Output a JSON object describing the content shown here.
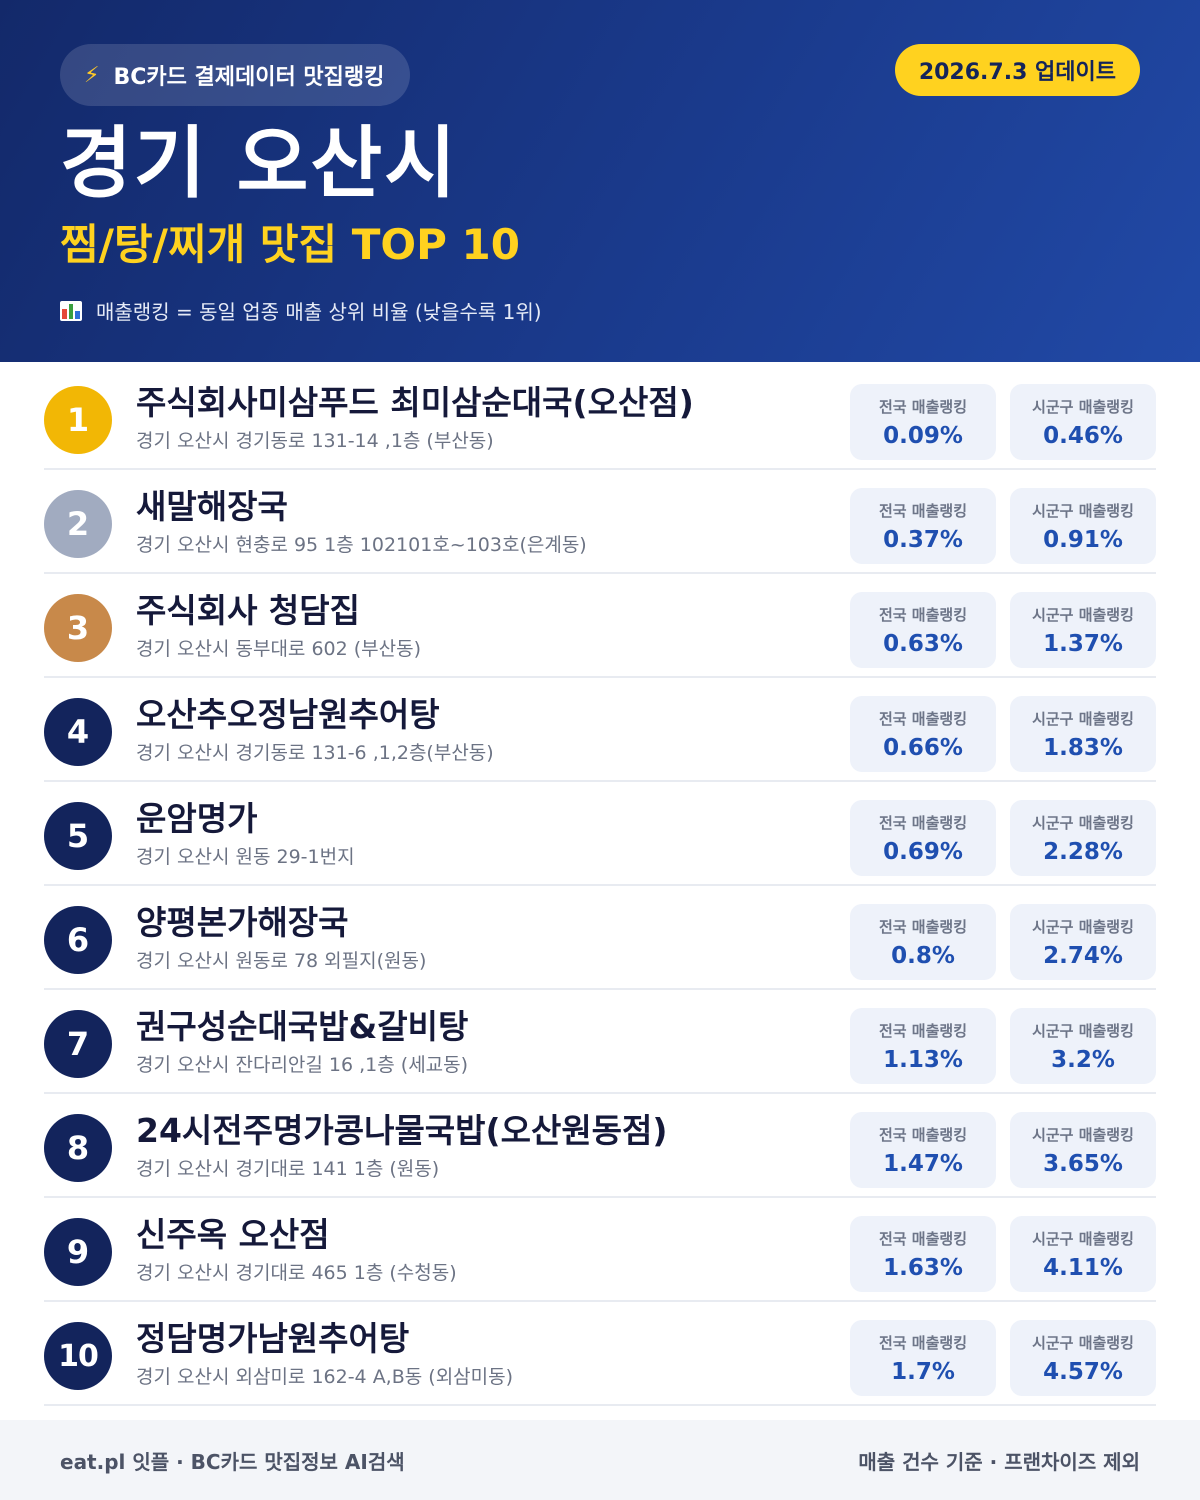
{
  "header": {
    "brand_icon": "lightning-icon",
    "brand_label": "BC카드 결제데이터 맛집랭킹",
    "update_label": "2026.7.3 업데이트",
    "region": "경기 오산시",
    "subtitle": "찜/탕/찌개 맛집 TOP 10",
    "legend_icon": "bar-chart-icon",
    "legend_text": "매출랭킹 = 동일 업종 매출 상위 비율 (낮을수록 1위)"
  },
  "stat_labels": {
    "national": "전국 매출랭킹",
    "local": "시군구 매출랭킹"
  },
  "colors": {
    "header_start": "#13296a",
    "header_end": "#2149a6",
    "accent_yellow": "#ffd21f",
    "rank_gold": "#f2b705",
    "rank_silver": "#a1abc0",
    "rank_bronze": "#c8894a",
    "rank_default": "#13245c",
    "stat_value": "#1f4fb0"
  },
  "restaurants": [
    {
      "rank": "1",
      "name": "주식회사미삼푸드 최미삼순대국(오산점)",
      "address": "경기 오산시 경기동로 131-14 ,1층 (부산동)",
      "national": "0.09%",
      "local": "0.46%"
    },
    {
      "rank": "2",
      "name": "새말해장국",
      "address": "경기 오산시 현충로 95 1층 102101호~103호(은계동)",
      "national": "0.37%",
      "local": "0.91%"
    },
    {
      "rank": "3",
      "name": "주식회사 청담집",
      "address": "경기 오산시 동부대로 602 (부산동)",
      "national": "0.63%",
      "local": "1.37%"
    },
    {
      "rank": "4",
      "name": "오산추오정남원추어탕",
      "address": "경기 오산시 경기동로 131-6 ,1,2층(부산동)",
      "national": "0.66%",
      "local": "1.83%"
    },
    {
      "rank": "5",
      "name": "운암명가",
      "address": "경기 오산시 원동 29-1번지",
      "national": "0.69%",
      "local": "2.28%"
    },
    {
      "rank": "6",
      "name": "양평본가해장국",
      "address": "경기 오산시 원동로 78 외필지(원동)",
      "national": "0.8%",
      "local": "2.74%"
    },
    {
      "rank": "7",
      "name": "권구성순대국밥&갈비탕",
      "address": "경기 오산시 잔다리안길 16 ,1층 (세교동)",
      "national": "1.13%",
      "local": "3.2%"
    },
    {
      "rank": "8",
      "name": "24시전주명가콩나물국밥(오산원동점)",
      "address": "경기 오산시 경기대로 141 1층 (원동)",
      "national": "1.47%",
      "local": "3.65%"
    },
    {
      "rank": "9",
      "name": "신주옥 오산점",
      "address": "경기 오산시 경기대로 465 1층 (수청동)",
      "national": "1.63%",
      "local": "4.11%"
    },
    {
      "rank": "10",
      "name": "정담명가남원추어탕",
      "address": "경기 오산시 외삼미로 162-4 A,B동 (외삼미동)",
      "national": "1.7%",
      "local": "4.57%"
    }
  ],
  "footer": {
    "left": "eat.pl 잇플 · BC카드 맛집정보 AI검색",
    "right": "매출 건수 기준 · 프랜차이즈 제외"
  }
}
